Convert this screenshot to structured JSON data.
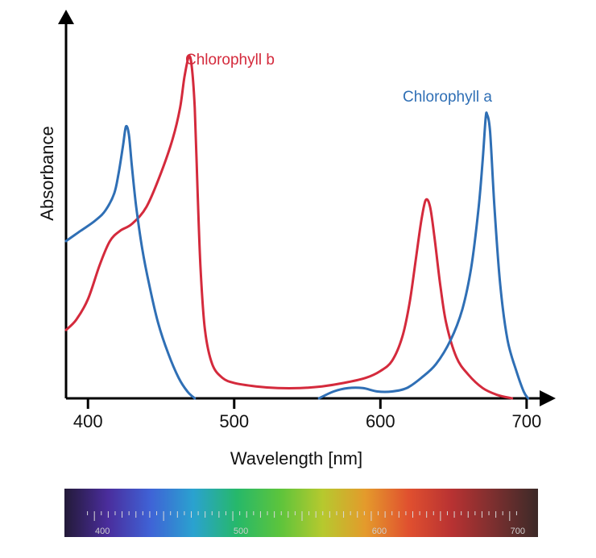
{
  "chart_data": {
    "type": "line",
    "xlabel": "Wavelength [nm]",
    "ylabel": "Absorbance",
    "xlim": [
      385,
      710
    ],
    "ylim": [
      0,
      1.0
    ],
    "xticks": [
      400,
      500,
      600,
      700
    ],
    "series": [
      {
        "name": "Chlorophyll a",
        "color": "#2f6fb5",
        "points": [
          [
            385,
            0.46
          ],
          [
            395,
            0.49
          ],
          [
            405,
            0.52
          ],
          [
            412,
            0.55
          ],
          [
            418,
            0.6
          ],
          [
            421,
            0.66
          ],
          [
            424,
            0.74
          ],
          [
            426,
            0.795
          ],
          [
            428,
            0.77
          ],
          [
            430,
            0.68
          ],
          [
            433,
            0.56
          ],
          [
            437,
            0.44
          ],
          [
            442,
            0.33
          ],
          [
            448,
            0.22
          ],
          [
            455,
            0.13
          ],
          [
            462,
            0.06
          ],
          [
            468,
            0.02
          ],
          [
            473,
            0.0
          ]
        ],
        "points2": [
          [
            558,
            0.0
          ],
          [
            568,
            0.02
          ],
          [
            578,
            0.03
          ],
          [
            588,
            0.03
          ],
          [
            598,
            0.02
          ],
          [
            608,
            0.02
          ],
          [
            618,
            0.03
          ],
          [
            628,
            0.06
          ],
          [
            638,
            0.1
          ],
          [
            648,
            0.17
          ],
          [
            656,
            0.26
          ],
          [
            662,
            0.38
          ],
          [
            667,
            0.55
          ],
          [
            670,
            0.7
          ],
          [
            672,
            0.82
          ],
          [
            673,
            0.83
          ],
          [
            675,
            0.78
          ],
          [
            678,
            0.56
          ],
          [
            682,
            0.33
          ],
          [
            687,
            0.17
          ],
          [
            693,
            0.08
          ],
          [
            698,
            0.02
          ],
          [
            701,
            0.0
          ]
        ]
      },
      {
        "name": "Chlorophyll b",
        "color": "#d42a3c",
        "points": [
          [
            385,
            0.2
          ],
          [
            392,
            0.23
          ],
          [
            400,
            0.29
          ],
          [
            408,
            0.39
          ],
          [
            415,
            0.46
          ],
          [
            422,
            0.49
          ],
          [
            430,
            0.51
          ],
          [
            440,
            0.56
          ],
          [
            450,
            0.66
          ],
          [
            458,
            0.76
          ],
          [
            463,
            0.85
          ],
          [
            466,
            0.94
          ],
          [
            469,
            1.0
          ],
          [
            471,
            0.97
          ],
          [
            473,
            0.85
          ],
          [
            475,
            0.6
          ],
          [
            477,
            0.38
          ],
          [
            480,
            0.2
          ],
          [
            485,
            0.1
          ],
          [
            492,
            0.06
          ],
          [
            500,
            0.045
          ],
          [
            515,
            0.035
          ],
          [
            530,
            0.03
          ],
          [
            545,
            0.03
          ],
          [
            560,
            0.035
          ],
          [
            575,
            0.045
          ],
          [
            590,
            0.06
          ],
          [
            600,
            0.08
          ],
          [
            608,
            0.11
          ],
          [
            615,
            0.18
          ],
          [
            620,
            0.28
          ],
          [
            624,
            0.4
          ],
          [
            628,
            0.52
          ],
          [
            631,
            0.58
          ],
          [
            634,
            0.56
          ],
          [
            637,
            0.47
          ],
          [
            641,
            0.33
          ],
          [
            645,
            0.22
          ],
          [
            652,
            0.12
          ],
          [
            660,
            0.07
          ],
          [
            670,
            0.03
          ],
          [
            680,
            0.01
          ],
          [
            690,
            0.0
          ]
        ]
      }
    ],
    "annotations": [
      "Chlorophyll b",
      "Chlorophyll a"
    ],
    "spectrum_bar": {
      "colors": [
        "#231a38",
        "#4a2d9c",
        "#3f63d6",
        "#2aa2cf",
        "#26b86a",
        "#5cc43c",
        "#b6c92e",
        "#e49a2c",
        "#e0502f",
        "#b83232",
        "#7a2f2f",
        "#3c2a28"
      ],
      "tick_labels": [
        "400",
        "500",
        "600",
        "700"
      ]
    }
  }
}
